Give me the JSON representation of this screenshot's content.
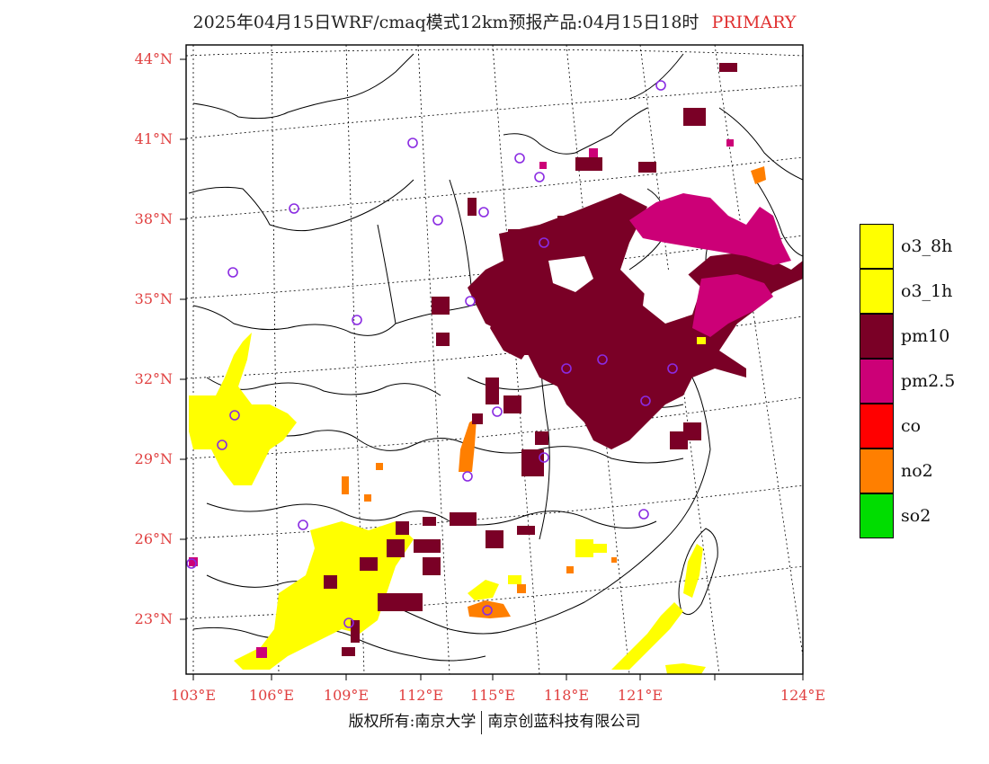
{
  "title": {
    "main": "2025年04月15日WRF/cmaq模式12km预报产品:04月15日18时",
    "tag": "PRIMARY"
  },
  "map": {
    "lon_range": [
      103,
      124
    ],
    "lat_range": [
      21,
      44.5
    ],
    "lat_ticks": [
      "44°N",
      "41°N",
      "38°N",
      "35°N",
      "32°N",
      "29°N",
      "26°N",
      "23°N"
    ],
    "lon_ticks": [
      "103°E",
      "106°E",
      "109°E",
      "112°E",
      "115°E",
      "118°E",
      "121°E",
      "124°E"
    ],
    "colors": {
      "o3_8h": "#ffff00",
      "o3_1h": "#ffff00",
      "pm10": "#7a0026",
      "pm25": "#cc0077",
      "co": "#ff0000",
      "no2": "#ff7f00",
      "so2": "#00dd00",
      "station": "#8a2be2",
      "tick_label": "#e04040"
    }
  },
  "legend": [
    {
      "label": "o3_8h",
      "color": "#ffff00"
    },
    {
      "label": "o3_1h",
      "color": "#ffff00"
    },
    {
      "label": "pm10",
      "color": "#7a0026"
    },
    {
      "label": "pm2.5",
      "color": "#cc0077"
    },
    {
      "label": "co",
      "color": "#ff0000"
    },
    {
      "label": "no2",
      "color": "#ff7f00"
    },
    {
      "label": "so2",
      "color": "#00dd00"
    }
  ],
  "footer": {
    "left": "版权所有:南京大学",
    "right": "南京创蓝科技有限公司"
  }
}
